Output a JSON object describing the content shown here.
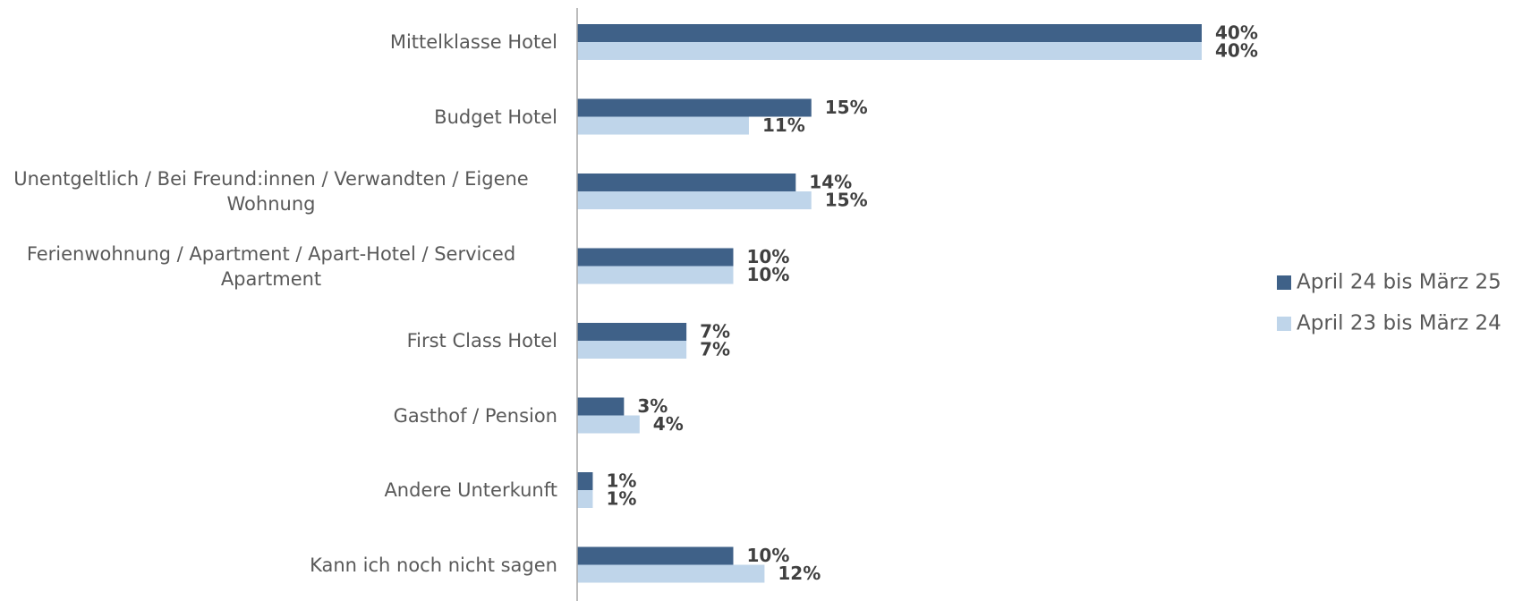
{
  "chart_data": {
    "type": "bar",
    "orientation": "horizontal",
    "categories": [
      "Mittelklasse Hotel",
      "Budget Hotel",
      "Unentgeltlich / Bei Freund:innen / Verwandten / Eigene Wohnung",
      "Ferienwohnung / Apartment / Apart-Hotel / Serviced Apartment",
      "First Class Hotel",
      "Gasthof / Pension",
      "Andere Unterkunft",
      "Kann ich noch nicht sagen"
    ],
    "series": [
      {
        "name": "April 24 bis März 25",
        "color": "#3f6188",
        "values": [
          40,
          15,
          14,
          10,
          7,
          3,
          1,
          10
        ],
        "value_labels": [
          "40%",
          "15%",
          "14%",
          "10%",
          "7%",
          "3%",
          "1%",
          "10%"
        ]
      },
      {
        "name": "April 23 bis März 24",
        "color": "#bfd5ea",
        "values": [
          40,
          11,
          15,
          10,
          7,
          4,
          1,
          12
        ],
        "value_labels": [
          "40%",
          "11%",
          "15%",
          "10%",
          "7%",
          "4%",
          "1%",
          "12%"
        ]
      }
    ],
    "legend": "right",
    "grid": false
  }
}
